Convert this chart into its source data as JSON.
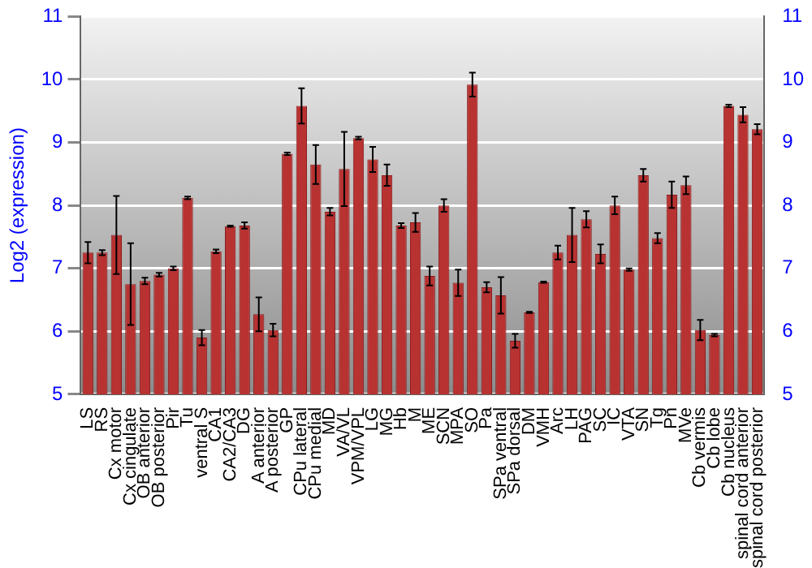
{
  "chart_data": {
    "type": "bar",
    "ylabel": "Log2 (expression)",
    "categories": [
      "LS",
      "RS",
      "Cx motor",
      "Cx cingulate",
      "OB anterior",
      "OB posterior",
      "Pir",
      "Tu",
      "ventral S",
      "CA1",
      "CA2/CA3",
      "DG",
      "A anterior",
      "A posterior",
      "GP",
      "CPu lateral",
      "CPu medial",
      "MD",
      "VA/VL",
      "VPM/VPL",
      "LG",
      "MG",
      "Hb",
      "M",
      "ME",
      "SCN",
      "MPA",
      "SO",
      "Pa",
      "SPa ventral",
      "SPa dorsal",
      "DM",
      "VMH",
      "Arc",
      "LH",
      "PAG",
      "SC",
      "IC",
      "VTA",
      "SN",
      "Tg",
      "Pn",
      "MVe",
      "Cb vermis",
      "Cb lobe",
      "Cb nucleus",
      "spinal cord anterior",
      "spinal cord posterior"
    ],
    "values": [
      7.25,
      7.25,
      7.53,
      6.75,
      6.8,
      6.9,
      7.0,
      8.12,
      5.9,
      7.27,
      7.67,
      7.68,
      6.27,
      6.02,
      8.82,
      9.58,
      8.65,
      7.9,
      8.58,
      9.07,
      8.73,
      8.48,
      7.68,
      7.73,
      6.88,
      8.0,
      6.77,
      9.92,
      6.7,
      6.57,
      5.85,
      6.3,
      6.78,
      7.25,
      7.53,
      7.78,
      7.23,
      8.0,
      6.98,
      8.48,
      7.48,
      8.17,
      8.32,
      6.02,
      5.94,
      9.58,
      9.44,
      9.21
    ],
    "errors": [
      0.17,
      0.04,
      0.62,
      0.65,
      0.05,
      0.03,
      0.03,
      0.02,
      0.12,
      0.03,
      0.01,
      0.05,
      0.27,
      0.1,
      0.02,
      0.28,
      0.31,
      0.06,
      0.59,
      0.02,
      0.2,
      0.17,
      0.04,
      0.15,
      0.15,
      0.1,
      0.21,
      0.19,
      0.08,
      0.29,
      0.11,
      0.01,
      0.01,
      0.11,
      0.43,
      0.13,
      0.15,
      0.14,
      0.02,
      0.1,
      0.08,
      0.21,
      0.14,
      0.16,
      0.02,
      0.02,
      0.12,
      0.08
    ],
    "color": "#b83232",
    "ylim": [
      5,
      11
    ],
    "yticks": [
      5,
      6,
      7,
      8,
      9,
      10,
      11
    ],
    "y2lim": [
      5,
      11
    ],
    "y2ticks": [
      5,
      6,
      7,
      8,
      9,
      10,
      11
    ],
    "grid": "y",
    "legend": false
  }
}
